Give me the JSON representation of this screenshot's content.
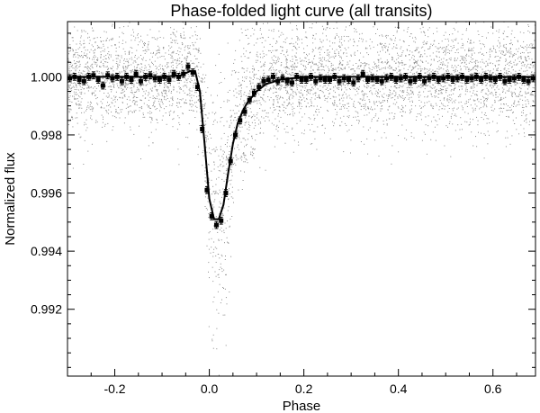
{
  "chart_data": {
    "type": "scatter",
    "title": "Phase-folded light curve (all transits)",
    "xlabel": "Phase",
    "ylabel": "Normalized flux",
    "xlim": [
      -0.3,
      0.69
    ],
    "ylim": [
      0.9897,
      1.0019
    ],
    "x_ticks": [
      -0.2,
      0.0,
      0.2,
      0.4,
      0.6
    ],
    "x_tick_labels": [
      "-0.2",
      "0.0",
      "0.2",
      "0.4",
      "0.6"
    ],
    "y_ticks": [
      0.992,
      0.994,
      0.996,
      0.998,
      1.0
    ],
    "y_tick_labels": [
      "0.992",
      "0.994",
      "0.996",
      "0.998",
      "1.000"
    ],
    "grid": false,
    "legend": "none",
    "series": [
      {
        "kind": "raw-points",
        "color": "#8c8c8c",
        "baseline": 1.0,
        "scatter_sigma": 0.0009
      },
      {
        "kind": "binned-points-with-errorbars",
        "color": "#000000",
        "errorbar": 0.00012,
        "x": [
          -0.295,
          -0.285,
          -0.275,
          -0.265,
          -0.255,
          -0.245,
          -0.235,
          -0.225,
          -0.215,
          -0.205,
          -0.195,
          -0.185,
          -0.175,
          -0.165,
          -0.155,
          -0.145,
          -0.135,
          -0.125,
          -0.115,
          -0.105,
          -0.095,
          -0.085,
          -0.075,
          -0.065,
          -0.055,
          -0.045,
          -0.035,
          -0.025,
          -0.015,
          -0.005,
          0.005,
          0.015,
          0.025,
          0.035,
          0.045,
          0.055,
          0.065,
          0.075,
          0.085,
          0.095,
          0.105,
          0.115,
          0.125,
          0.135,
          0.145,
          0.155,
          0.165,
          0.175,
          0.185,
          0.195,
          0.205,
          0.215,
          0.225,
          0.235,
          0.245,
          0.255,
          0.265,
          0.275,
          0.285,
          0.295,
          0.305,
          0.315,
          0.325,
          0.335,
          0.345,
          0.355,
          0.365,
          0.375,
          0.385,
          0.395,
          0.405,
          0.415,
          0.425,
          0.435,
          0.445,
          0.455,
          0.465,
          0.475,
          0.485,
          0.495,
          0.505,
          0.515,
          0.525,
          0.535,
          0.545,
          0.555,
          0.565,
          0.575,
          0.585,
          0.595,
          0.605,
          0.615,
          0.625,
          0.635,
          0.645,
          0.655,
          0.665,
          0.675,
          0.685
        ],
        "y": [
          0.99995,
          1.0,
          0.9999,
          0.99985,
          1.0,
          1.00005,
          0.9999,
          0.9997,
          1.00005,
          0.99995,
          1.0,
          0.99985,
          1.0,
          0.9999,
          1.0001,
          0.99985,
          1.0,
          1.00005,
          0.99995,
          0.9999,
          1.0,
          0.9999,
          1.0001,
          1.0,
          1.0001,
          1.00035,
          1.00015,
          0.99965,
          0.9982,
          0.9961,
          0.9952,
          0.9949,
          0.99505,
          0.996,
          0.9971,
          0.998,
          0.9985,
          0.9988,
          0.9992,
          0.99945,
          0.99965,
          0.99985,
          0.9999,
          1.0,
          0.99985,
          0.99995,
          0.99985,
          0.9998,
          1.0,
          0.9999,
          0.9999,
          1.0,
          0.99985,
          0.99995,
          0.9999,
          0.9999,
          1.0,
          0.99985,
          0.99995,
          0.9999,
          0.9998,
          0.99995,
          1.0001,
          0.9999,
          0.99995,
          0.9999,
          0.99985,
          0.99995,
          1.0,
          0.9999,
          0.99995,
          1.0,
          0.99985,
          0.9999,
          1.0,
          0.99985,
          0.99995,
          1.0,
          0.9999,
          0.99995,
          1.0,
          0.9999,
          0.99995,
          1.0,
          0.9999,
          0.99995,
          1.0,
          0.9999,
          1.0,
          0.99995,
          0.9999,
          1.0,
          0.99985,
          0.9999,
          0.99995,
          1.0,
          0.9999,
          0.99985,
          0.99995
        ]
      },
      {
        "kind": "model-line",
        "color": "#000000",
        "x": [
          -0.3,
          -0.2,
          -0.1,
          -0.06,
          -0.04,
          -0.03,
          -0.02,
          -0.01,
          0.0,
          0.01,
          0.02,
          0.03,
          0.04,
          0.05,
          0.06,
          0.07,
          0.08,
          0.1,
          0.12,
          0.15,
          0.2,
          0.4,
          0.69
        ],
        "y": [
          1.0,
          1.0,
          1.0,
          1.00005,
          1.0002,
          1.0002,
          0.9995,
          0.9977,
          0.9958,
          0.9951,
          0.9951,
          0.9956,
          0.9967,
          0.9977,
          0.9984,
          0.9988,
          0.9991,
          0.9995,
          0.99975,
          0.9999,
          1.0,
          1.0,
          1.0
        ]
      }
    ]
  }
}
